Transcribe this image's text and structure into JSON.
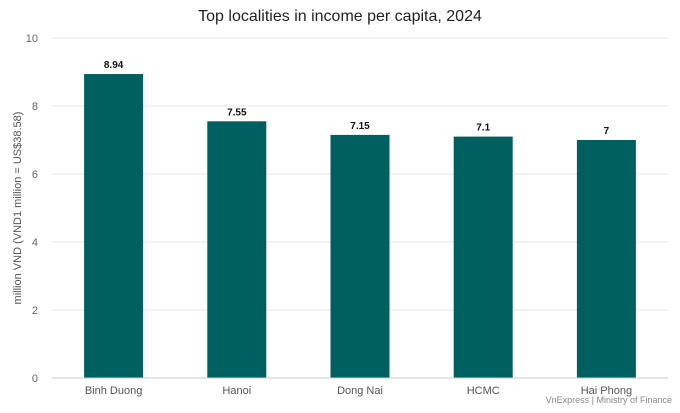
{
  "chart_data": {
    "type": "bar",
    "title": "Top localities in income per capita, 2024",
    "xlabel": "",
    "ylabel": "million VND (VND1 million = US$38.58)",
    "categories": [
      "Binh Duong",
      "Hanoi",
      "Dong Nai",
      "HCMC",
      "Hai Phong"
    ],
    "values": [
      8.94,
      7.55,
      7.15,
      7.1,
      7
    ],
    "data_labels": [
      "8.94",
      "7.55",
      "7.15",
      "7.1",
      "7"
    ],
    "ylim": [
      0,
      10
    ],
    "yticks": [
      0,
      2,
      4,
      6,
      8,
      10
    ],
    "grid": true,
    "legend": "none",
    "source": "VnExpress | Ministry of Finance",
    "colors": {
      "bar": "#005f5f",
      "grid": "#e6e6e6",
      "axis": "#cccccc"
    }
  }
}
